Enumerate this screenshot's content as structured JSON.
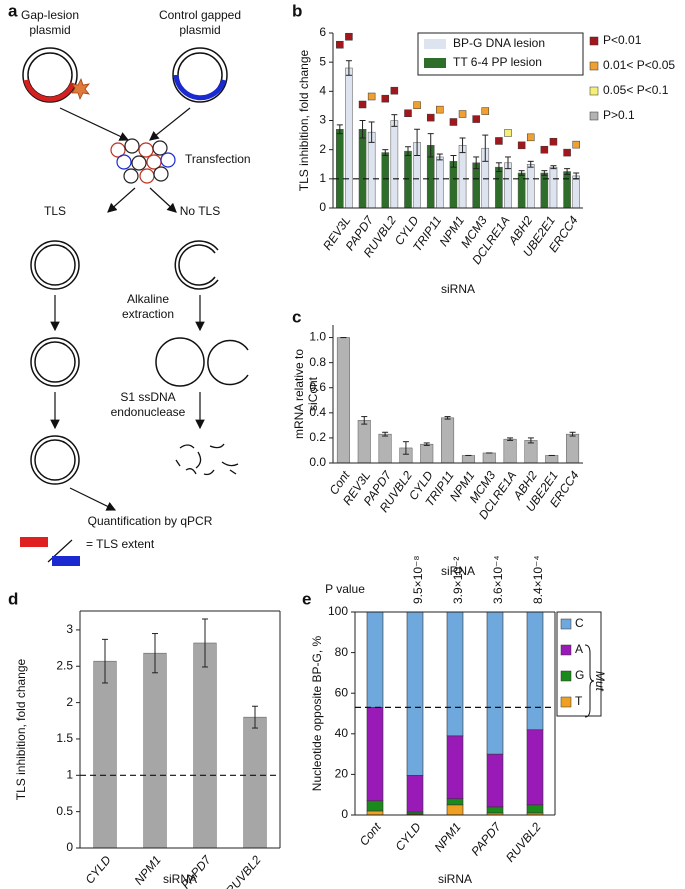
{
  "diagram": {
    "panel_label": "a",
    "gap_lesion_plasmid": [
      "Gap-lesion",
      "plasmid"
    ],
    "control_plasmid": [
      "Control gapped",
      "plasmid"
    ],
    "transfection": "Transfection",
    "tls": "TLS",
    "no_tls": "No TLS",
    "alkaline": [
      "Alkaline",
      "extraction"
    ],
    "s1": [
      "S1 ssDNA",
      "endonuclease"
    ],
    "quantification": "Quantification by qPCR",
    "tls_extent": "= TLS extent"
  },
  "chart_data": [
    {
      "panel_label": "b",
      "type": "bar",
      "ylabel": "TLS inhibition, fold change",
      "xlabel": "siRNA",
      "categories": [
        "REV3L",
        "PAPD7",
        "RUVBL2",
        "CYLD",
        "TRIP11",
        "NPM1",
        "MCM3",
        "DCLRE1A",
        "ABH2",
        "UBE2E1",
        "ERCC4"
      ],
      "series": [
        {
          "name": "BP-G DNA lesion",
          "color": "#dde3ef",
          "values": [
            4.8,
            2.6,
            3.0,
            2.25,
            1.75,
            2.15,
            2.05,
            1.55,
            1.5,
            1.4,
            1.1
          ],
          "errors": [
            0.25,
            0.35,
            0.2,
            0.45,
            0.1,
            0.25,
            0.45,
            0.2,
            0.1,
            0.05,
            0.1
          ],
          "significance": [
            0,
            1,
            0,
            1,
            1,
            1,
            1,
            2,
            1,
            0,
            1
          ]
        },
        {
          "name": "TT 6-4 PP lesion",
          "color": "#2f6e2a",
          "values": [
            2.7,
            2.7,
            1.9,
            1.95,
            2.15,
            1.6,
            1.55,
            1.4,
            1.2,
            1.2,
            1.25
          ],
          "errors": [
            0.15,
            0.3,
            0.1,
            0.15,
            0.4,
            0.2,
            0.2,
            0.15,
            0.08,
            0.08,
            0.1
          ],
          "significance": [
            0,
            0,
            0,
            0,
            0,
            0,
            0,
            0,
            0,
            0,
            0
          ]
        }
      ],
      "ylim": [
        0,
        6
      ],
      "yticks": [
        0,
        1,
        2,
        3,
        4,
        5,
        6
      ],
      "reference_line": 1,
      "significance_legend": [
        {
          "label": "P<0.01",
          "color": "#a3171c"
        },
        {
          "label": "0.01< P<0.05",
          "color": "#f0a030"
        },
        {
          "label": "0.05< P<0.1",
          "color": "#f5ef78"
        },
        {
          "label": "P>0.1",
          "color": "#b3b3b3"
        }
      ]
    },
    {
      "panel_label": "c",
      "type": "bar",
      "ylabel_lines": [
        "mRNA relative to",
        "siCont"
      ],
      "xlabel": "siRNA",
      "categories": [
        "Cont",
        "REV3L",
        "PAPD7",
        "RUVBL2",
        "CYLD",
        "TRIP11",
        "NPM1",
        "MCM3",
        "DCLRE1A",
        "ABH2",
        "UBE2E1",
        "ERCC4"
      ],
      "values": [
        1.0,
        0.34,
        0.23,
        0.12,
        0.15,
        0.36,
        0.06,
        0.08,
        0.19,
        0.18,
        0.06,
        0.23
      ],
      "errors": [
        0,
        0.03,
        0.015,
        0.05,
        0.01,
        0.01,
        0,
        0,
        0.01,
        0.02,
        0,
        0.015
      ],
      "color": "#b3b3b3",
      "ylim": [
        0,
        1.1
      ],
      "yticks": [
        {
          "value": 0,
          "label": "0.0"
        },
        0.2,
        0.4,
        0.6,
        0.8,
        {
          "value": 1,
          "label": "1.0"
        }
      ]
    },
    {
      "panel_label": "d",
      "type": "bar",
      "ylabel": "TLS inhibition, fold change",
      "xlabel": "siRNA",
      "categories": [
        "CYLD",
        "NPM1",
        "PAPD7",
        "RUVBL2"
      ],
      "values": [
        2.57,
        2.68,
        2.82,
        1.8
      ],
      "errors": [
        0.3,
        0.27,
        0.33,
        0.15
      ],
      "color": "#a6a6a6",
      "ylim": [
        0,
        3.26
      ],
      "yticks": [
        0,
        0.5,
        1,
        1.5,
        2,
        2.5,
        3
      ],
      "reference_line": 1,
      "frame": true
    },
    {
      "panel_label": "e",
      "type": "bar",
      "stacked": true,
      "ylabel": "Nucleotide opposite BP-G, %",
      "xlabel": "siRNA",
      "categories": [
        "Cont",
        "CYLD",
        "NPM1",
        "PAPD7",
        "RUVBL2"
      ],
      "series": [
        {
          "name": "T",
          "color": "#f0a020",
          "values": [
            2,
            0.5,
            5,
            1,
            1
          ]
        },
        {
          "name": "G",
          "color": "#1a8a1a",
          "values": [
            5,
            1,
            3,
            3,
            4
          ]
        },
        {
          "name": "A",
          "color": "#9a1ab8",
          "values": [
            46,
            18,
            31,
            26,
            37
          ]
        },
        {
          "name": "C",
          "color": "#6fa8dc",
          "values": [
            47,
            80.5,
            61,
            70,
            58
          ]
        }
      ],
      "ylim": [
        0,
        100
      ],
      "yticks": [
        0,
        20,
        40,
        60,
        80,
        100
      ],
      "reference_line": 53,
      "frame": true,
      "p_value_label": "P value",
      "p_values": [
        null,
        "9.5×10⁻⁸",
        "3.9×10⁻²",
        "3.6×10⁻⁴",
        "8.4×10⁻⁴"
      ],
      "mut_label": "Mut"
    }
  ]
}
